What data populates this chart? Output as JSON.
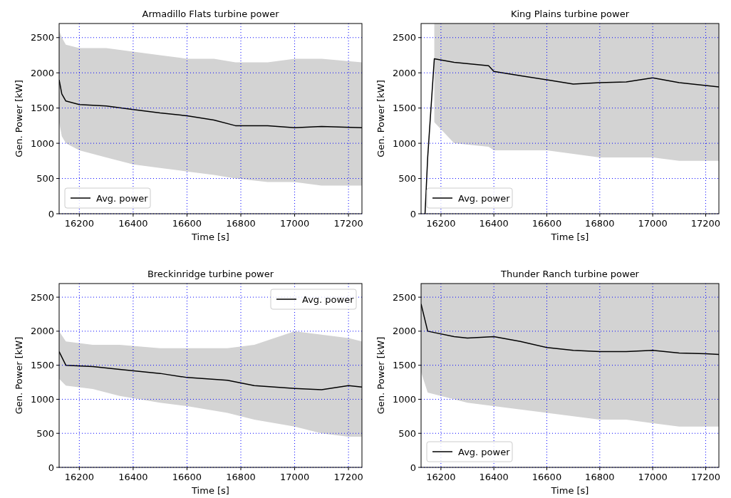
{
  "chart_data": [
    {
      "type": "line",
      "title": "Armadillo Flats turbine power",
      "xlabel": "Time [s]",
      "ylabel": "Gen. Power [kW]",
      "xlim": [
        16125,
        17250
      ],
      "ylim": [
        0,
        2700
      ],
      "xticks": [
        16200,
        16400,
        16600,
        16800,
        17000,
        17200
      ],
      "yticks": [
        0,
        500,
        1000,
        1500,
        2000,
        2500
      ],
      "grid": true,
      "legend": "bottom left",
      "x": [
        16125,
        16135,
        16150,
        16200,
        16300,
        16400,
        16500,
        16600,
        16700,
        16780,
        16900,
        17000,
        17100,
        17250
      ],
      "series": [
        {
          "name": "Avg. power",
          "color": "#000000",
          "values": [
            1900,
            1700,
            1600,
            1550,
            1530,
            1480,
            1430,
            1390,
            1330,
            1250,
            1250,
            1220,
            1240,
            1220
          ],
          "lower": [
            1300,
            1100,
            1000,
            900,
            800,
            700,
            650,
            600,
            550,
            500,
            450,
            450,
            400,
            400
          ],
          "upper": [
            2600,
            2500,
            2400,
            2350,
            2350,
            2300,
            2250,
            2200,
            2200,
            2150,
            2150,
            2200,
            2200,
            2150
          ]
        }
      ]
    },
    {
      "type": "line",
      "title": "King Plains turbine power",
      "xlabel": "Time [s]",
      "ylabel": "Gen. Power [kW]",
      "xlim": [
        16125,
        17250
      ],
      "ylim": [
        0,
        2700
      ],
      "xticks": [
        16200,
        16400,
        16600,
        16800,
        17000,
        17200
      ],
      "yticks": [
        0,
        500,
        1000,
        1500,
        2000,
        2500
      ],
      "grid": true,
      "legend": "bottom left",
      "x": [
        16140,
        16150,
        16175,
        16250,
        16380,
        16400,
        16500,
        16600,
        16700,
        16800,
        16900,
        17000,
        17100,
        17250
      ],
      "series": [
        {
          "name": "Avg. power",
          "color": "#000000",
          "values": [
            0,
            800,
            2200,
            2150,
            2100,
            2020,
            1960,
            1900,
            1840,
            1860,
            1870,
            1930,
            1860,
            1800
          ],
          "lower": [
            null,
            null,
            1300,
            1000,
            950,
            900,
            900,
            900,
            850,
            800,
            800,
            800,
            750,
            750
          ],
          "upper": [
            null,
            null,
            2700,
            2700,
            2700,
            2700,
            2700,
            2700,
            2700,
            2700,
            2700,
            2700,
            2700,
            2700
          ]
        }
      ]
    },
    {
      "type": "line",
      "title": "Breckinridge turbine power",
      "xlabel": "Time [s]",
      "ylabel": "Gen. Power [kW]",
      "xlim": [
        16125,
        17250
      ],
      "ylim": [
        0,
        2700
      ],
      "xticks": [
        16200,
        16400,
        16600,
        16800,
        17000,
        17200
      ],
      "yticks": [
        0,
        500,
        1000,
        1500,
        2000,
        2500
      ],
      "grid": true,
      "legend": "top right",
      "x": [
        16125,
        16150,
        16250,
        16350,
        16500,
        16600,
        16750,
        16850,
        17000,
        17100,
        17200,
        17250
      ],
      "series": [
        {
          "name": "Avg. power",
          "color": "#000000",
          "values": [
            1700,
            1500,
            1480,
            1440,
            1380,
            1320,
            1280,
            1200,
            1160,
            1140,
            1200,
            1180
          ],
          "lower": [
            1300,
            1200,
            1150,
            1050,
            950,
            900,
            800,
            700,
            600,
            500,
            450,
            450
          ],
          "upper": [
            2000,
            1850,
            1800,
            1800,
            1750,
            1750,
            1750,
            1800,
            2000,
            1950,
            1900,
            1850
          ]
        }
      ]
    },
    {
      "type": "line",
      "title": "Thunder Ranch turbine power",
      "xlabel": "Time [s]",
      "ylabel": "Gen. Power [kW]",
      "xlim": [
        16125,
        17250
      ],
      "ylim": [
        0,
        2700
      ],
      "xticks": [
        16200,
        16400,
        16600,
        16800,
        17000,
        17200
      ],
      "yticks": [
        0,
        500,
        1000,
        1500,
        2000,
        2500
      ],
      "grid": true,
      "legend": "bottom left",
      "x": [
        16125,
        16150,
        16250,
        16300,
        16400,
        16500,
        16600,
        16700,
        16800,
        16900,
        17000,
        17100,
        17200,
        17250
      ],
      "series": [
        {
          "name": "Avg. power",
          "color": "#000000",
          "values": [
            2400,
            2000,
            1920,
            1900,
            1920,
            1850,
            1760,
            1720,
            1700,
            1700,
            1720,
            1680,
            1670,
            1660
          ],
          "lower": [
            1400,
            1100,
            1000,
            950,
            900,
            850,
            800,
            750,
            700,
            700,
            650,
            600,
            600,
            600
          ],
          "upper": [
            2700,
            2700,
            2700,
            2700,
            2700,
            2700,
            2700,
            2700,
            2700,
            2700,
            2700,
            2700,
            2700,
            2700
          ]
        }
      ]
    }
  ]
}
